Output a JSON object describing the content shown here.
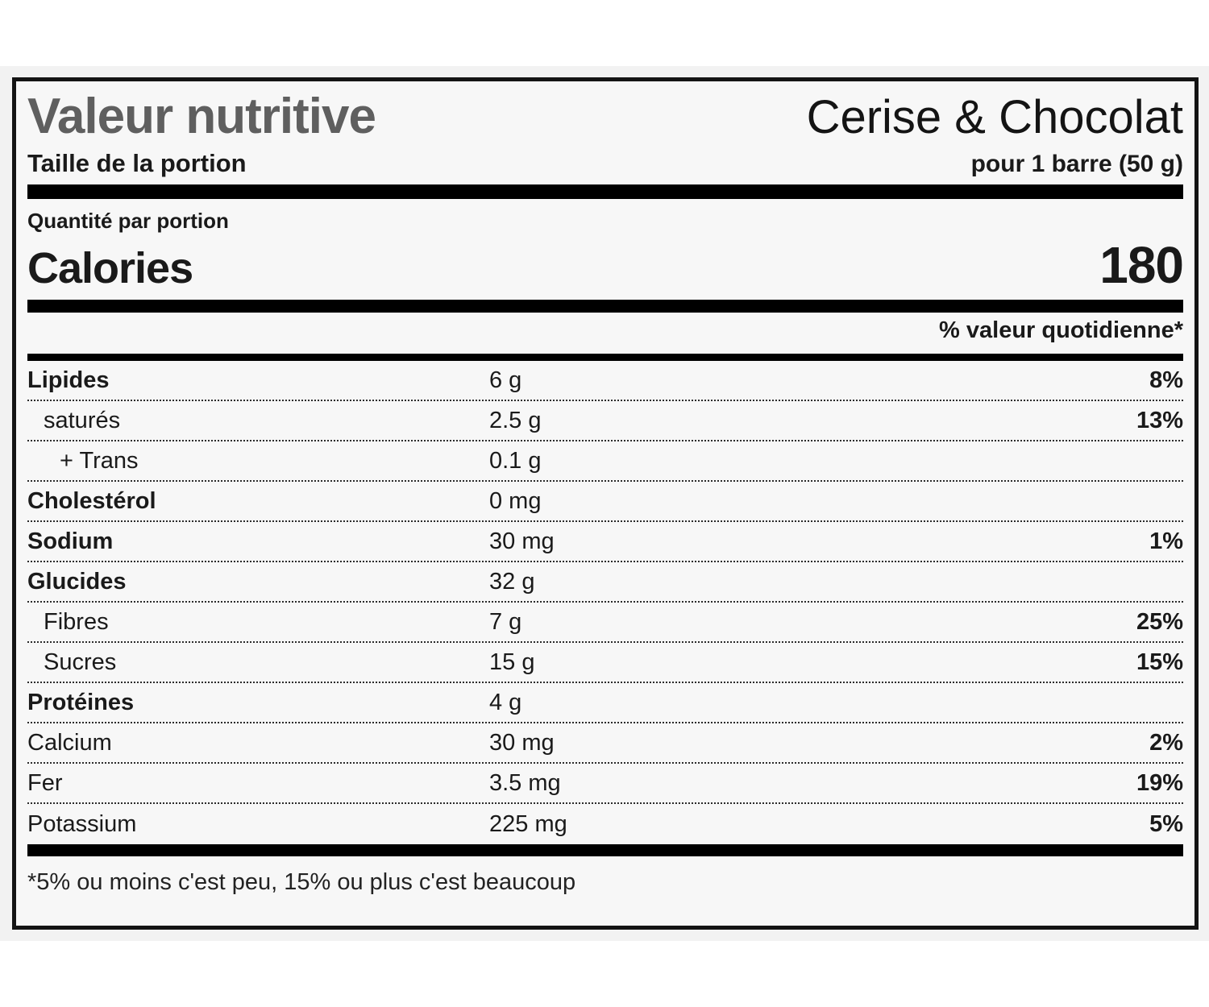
{
  "label": {
    "title": "Valeur nutritive",
    "product_name": "Cerise & Chocolat",
    "serving_label": "Taille de la portion",
    "serving_size": "pour 1 barre (50 g)",
    "amount_per_label": "Quantité par portion",
    "calories_label": "Calories",
    "calories_value": "180",
    "dv_header": "% valeur quotidienne*",
    "nutrients": [
      {
        "name": "Lipides",
        "amount": "6 g",
        "dv": "8%",
        "bold": true,
        "indent": 0
      },
      {
        "name": "saturés",
        "amount": "2.5 g",
        "dv": "13%",
        "bold": false,
        "indent": 1
      },
      {
        "name": "+ Trans",
        "amount": "0.1 g",
        "dv": "",
        "bold": false,
        "indent": 2
      },
      {
        "name": "Cholestérol",
        "amount": "0 mg",
        "dv": "",
        "bold": true,
        "indent": 0
      },
      {
        "name": "Sodium",
        "amount": "30 mg",
        "dv": "1%",
        "bold": true,
        "indent": 0
      },
      {
        "name": "Glucides",
        "amount": "32 g",
        "dv": "",
        "bold": true,
        "indent": 0
      },
      {
        "name": "Fibres",
        "amount": "7 g",
        "dv": "25%",
        "bold": false,
        "indent": 1
      },
      {
        "name": "Sucres",
        "amount": "15 g",
        "dv": "15%",
        "bold": false,
        "indent": 1
      },
      {
        "name": "Protéines",
        "amount": "4 g",
        "dv": "",
        "bold": true,
        "indent": 0
      },
      {
        "name": "Calcium",
        "amount": "30 mg",
        "dv": "2%",
        "bold": false,
        "indent": 0
      },
      {
        "name": "Fer",
        "amount": "3.5 mg",
        "dv": "19%",
        "bold": false,
        "indent": 0
      },
      {
        "name": "Potassium",
        "amount": "225 mg",
        "dv": "5%",
        "bold": false,
        "indent": 0
      }
    ],
    "footnote": "*5% ou moins c'est peu, 15% ou plus c'est beaucoup"
  },
  "colors": {
    "title_gray": "#5f5f5f",
    "text_black": "#1a1a1a",
    "bar_black": "#000000",
    "label_background": "#f7f7f7",
    "page_band_background": "#f2f2f2"
  }
}
